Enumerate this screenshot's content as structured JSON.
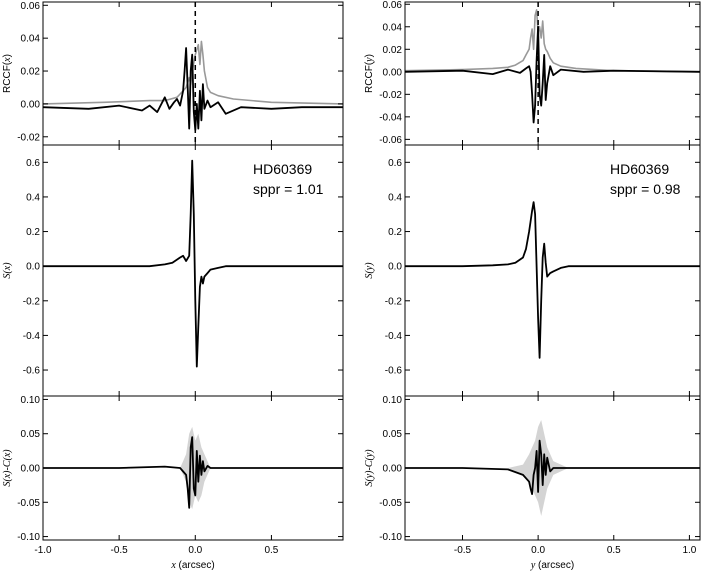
{
  "chart_data": [
    {
      "type": "line",
      "column": "x",
      "panel": "rccf",
      "ylabel_prefix": "RCCF(",
      "ylabel_var": "x",
      "ylabel_suffix": ")",
      "xlim": [
        -1.0,
        0.97
      ],
      "ylim": [
        -0.025,
        0.062
      ],
      "yticks": [
        -0.02,
        0.0,
        0.02,
        0.04,
        0.06
      ],
      "ytick_labels": [
        "-0.02",
        "0.00",
        "0.02",
        "0.04",
        "0.06"
      ],
      "vline_x": 0.0,
      "series": [
        {
          "color": "#999999",
          "x": [
            -1.0,
            -0.6,
            -0.3,
            -0.2,
            -0.12,
            -0.1,
            -0.08,
            -0.06,
            -0.05,
            -0.04,
            -0.03,
            -0.02,
            -0.01,
            0.0,
            0.01,
            0.02,
            0.03,
            0.04,
            0.05,
            0.06,
            0.08,
            0.1,
            0.15,
            0.25,
            0.5,
            0.97
          ],
          "y": [
            0.0,
            0.001,
            0.002,
            0.002,
            0.004,
            0.006,
            0.008,
            0.01,
            0.013,
            0.016,
            0.012,
            0.02,
            0.025,
            0.03,
            0.033,
            0.036,
            0.024,
            0.038,
            0.03,
            0.02,
            0.01,
            0.007,
            0.005,
            0.003,
            0.001,
            0.0
          ]
        },
        {
          "color": "#000000",
          "x": [
            -1.0,
            -0.7,
            -0.5,
            -0.35,
            -0.3,
            -0.25,
            -0.2,
            -0.17,
            -0.14,
            -0.12,
            -0.1,
            -0.08,
            -0.07,
            -0.06,
            -0.05,
            -0.04,
            -0.03,
            -0.02,
            -0.01,
            0.0,
            0.01,
            0.02,
            0.03,
            0.04,
            0.05,
            0.06,
            0.08,
            0.1,
            0.15,
            0.2,
            0.3,
            0.5,
            0.7,
            0.97
          ],
          "y": [
            -0.002,
            -0.003,
            -0.001,
            -0.004,
            -0.001,
            -0.005,
            0.004,
            -0.003,
            0.001,
            0.003,
            -0.001,
            0.008,
            0.02,
            0.034,
            0.01,
            -0.015,
            0.02,
            0.03,
            -0.005,
            -0.016,
            0.0,
            -0.015,
            0.008,
            -0.01,
            0.012,
            -0.003,
            0.002,
            -0.002,
            0.001,
            -0.006,
            -0.002,
            -0.003,
            -0.002,
            -0.002
          ]
        }
      ]
    },
    {
      "type": "line",
      "column": "x",
      "panel": "signal",
      "ylabel_prefix": "S(",
      "ylabel_var": "x",
      "ylabel_suffix": ")",
      "xlim": [
        -1.0,
        0.97
      ],
      "ylim": [
        -0.75,
        0.7
      ],
      "yticks": [
        -0.6,
        -0.4,
        -0.2,
        0.0,
        0.2,
        0.4,
        0.6
      ],
      "ytick_labels": [
        "-0.6",
        "-0.4",
        "-0.2",
        "0.0",
        "0.2",
        "0.4",
        "0.6"
      ],
      "annotation_name": "HD60369",
      "annotation_sppr": "sppr = 1.01",
      "series": [
        {
          "color": "#000000",
          "x": [
            -1.0,
            -0.5,
            -0.3,
            -0.2,
            -0.15,
            -0.1,
            -0.08,
            -0.06,
            -0.04,
            -0.03,
            -0.02,
            -0.01,
            0.0,
            0.01,
            0.02,
            0.03,
            0.04,
            0.05,
            0.06,
            0.08,
            0.1,
            0.15,
            0.2,
            0.3,
            0.5,
            0.97
          ],
          "y": [
            0.0,
            0.0,
            0.0,
            0.01,
            0.02,
            0.05,
            0.06,
            0.03,
            0.06,
            0.3,
            0.61,
            0.3,
            -0.2,
            -0.58,
            -0.35,
            -0.12,
            -0.06,
            -0.1,
            -0.06,
            -0.04,
            -0.02,
            -0.01,
            0.0,
            0.0,
            0.0,
            0.0
          ]
        }
      ]
    },
    {
      "type": "line",
      "column": "x",
      "panel": "residual",
      "ylabel_prefix": "S(",
      "ylabel_var": "x",
      "ylabel_mid": ")-C(",
      "ylabel_var2": "x",
      "ylabel_suffix": ")",
      "xlabel_var": "x",
      "xlabel_unit": " (arcsec)",
      "xlim": [
        -1.0,
        0.97
      ],
      "ylim": [
        -0.105,
        0.105
      ],
      "yticks": [
        -0.1,
        -0.05,
        0.0,
        0.05,
        0.1
      ],
      "ytick_labels": [
        "-0.10",
        "-0.05",
        "0.00",
        "0.05",
        "0.10"
      ],
      "xticks": [
        -1.0,
        -0.5,
        0.0,
        0.5
      ],
      "xtick_labels": [
        "-1.0",
        "-0.5",
        "0.0",
        "0.5"
      ],
      "band": {
        "x": [
          -0.1,
          -0.06,
          -0.04,
          -0.02,
          0.0,
          0.02,
          0.04,
          0.06,
          0.1
        ],
        "upper": [
          0.0,
          0.02,
          0.05,
          0.06,
          0.04,
          0.05,
          0.03,
          0.02,
          0.0
        ],
        "lower": [
          0.0,
          -0.02,
          -0.05,
          -0.06,
          -0.04,
          -0.05,
          -0.04,
          -0.02,
          0.0
        ]
      },
      "series": [
        {
          "color": "#000000",
          "x": [
            -1.0,
            -0.5,
            -0.2,
            -0.1,
            -0.06,
            -0.05,
            -0.04,
            -0.03,
            -0.02,
            -0.01,
            0.0,
            0.01,
            0.02,
            0.03,
            0.04,
            0.05,
            0.06,
            0.08,
            0.1,
            0.3,
            0.97
          ],
          "y": [
            0.0,
            0.0,
            0.002,
            0.0,
            -0.01,
            -0.03,
            -0.058,
            0.03,
            0.045,
            -0.03,
            -0.04,
            0.025,
            -0.02,
            0.018,
            -0.01,
            0.01,
            -0.005,
            0.003,
            0.0,
            0.0,
            0.0
          ]
        }
      ]
    },
    {
      "type": "line",
      "column": "y",
      "panel": "rccf",
      "ylabel_prefix": "RCCF(",
      "ylabel_var": "y",
      "ylabel_suffix": ")",
      "xlim": [
        -0.88,
        1.07
      ],
      "ylim": [
        -0.065,
        0.062
      ],
      "yticks": [
        -0.06,
        -0.04,
        -0.02,
        0.0,
        0.02,
        0.04,
        0.06
      ],
      "ytick_labels": [
        "-0.06",
        "-0.04",
        "-0.02",
        "0.00",
        "0.02",
        "0.04",
        "0.06"
      ],
      "vline_x": 0.0,
      "series": [
        {
          "color": "#999999",
          "x": [
            -0.88,
            -0.5,
            -0.3,
            -0.2,
            -0.15,
            -0.1,
            -0.08,
            -0.06,
            -0.05,
            -0.04,
            -0.03,
            -0.02,
            -0.01,
            0.0,
            0.01,
            0.02,
            0.03,
            0.04,
            0.05,
            0.06,
            0.08,
            0.1,
            0.15,
            0.25,
            0.5,
            1.07
          ],
          "y": [
            0.001,
            0.002,
            0.003,
            0.004,
            0.006,
            0.01,
            0.015,
            0.02,
            0.03,
            0.038,
            0.02,
            0.05,
            0.055,
            0.035,
            0.04,
            0.03,
            0.045,
            0.025,
            0.02,
            0.018,
            0.012,
            0.008,
            0.005,
            0.003,
            0.001,
            0.0
          ]
        },
        {
          "color": "#000000",
          "x": [
            -0.88,
            -0.5,
            -0.3,
            -0.2,
            -0.12,
            -0.08,
            -0.06,
            -0.05,
            -0.04,
            -0.03,
            -0.02,
            -0.01,
            0.0,
            0.01,
            0.02,
            0.03,
            0.04,
            0.05,
            0.06,
            0.08,
            0.1,
            0.15,
            0.3,
            0.5,
            1.07
          ],
          "y": [
            0.0,
            0.001,
            -0.002,
            0.002,
            -0.001,
            0.003,
            0.005,
            0.0,
            -0.02,
            -0.045,
            -0.03,
            0.01,
            0.04,
            -0.02,
            -0.03,
            -0.01,
            0.015,
            -0.025,
            -0.01,
            0.005,
            -0.003,
            0.002,
            0.0,
            0.001,
            0.0
          ]
        }
      ]
    },
    {
      "type": "line",
      "column": "y",
      "panel": "signal",
      "ylabel_prefix": "S(",
      "ylabel_var": "y",
      "ylabel_suffix": ")",
      "xlim": [
        -0.88,
        1.07
      ],
      "ylim": [
        -0.75,
        0.7
      ],
      "yticks": [
        -0.6,
        -0.4,
        -0.2,
        0.0,
        0.2,
        0.4,
        0.6
      ],
      "ytick_labels": [
        "-0.6",
        "-0.4",
        "-0.2",
        "0.0",
        "0.2",
        "0.4",
        "0.6"
      ],
      "annotation_name": "HD60369",
      "annotation_sppr": "sppr = 0.98",
      "series": [
        {
          "color": "#000000",
          "x": [
            -0.88,
            -0.5,
            -0.3,
            -0.2,
            -0.15,
            -0.1,
            -0.08,
            -0.06,
            -0.05,
            -0.04,
            -0.03,
            -0.02,
            -0.01,
            0.0,
            0.01,
            0.02,
            0.03,
            0.04,
            0.05,
            0.06,
            0.08,
            0.1,
            0.15,
            0.2,
            0.3,
            0.5,
            1.07
          ],
          "y": [
            0.0,
            0.0,
            0.005,
            0.01,
            0.02,
            0.05,
            0.1,
            0.2,
            0.26,
            0.32,
            0.37,
            0.3,
            0.0,
            -0.3,
            -0.53,
            -0.2,
            0.05,
            0.13,
            0.02,
            -0.06,
            -0.04,
            -0.03,
            -0.01,
            0.0,
            0.0,
            0.0,
            0.0
          ]
        }
      ]
    },
    {
      "type": "line",
      "column": "y",
      "panel": "residual",
      "ylabel_prefix": "S(",
      "ylabel_var": "y",
      "ylabel_mid": ")-C(",
      "ylabel_var2": "y",
      "ylabel_suffix": ")",
      "xlabel_var": "y",
      "xlabel_unit": " (arcsec)",
      "xlim": [
        -0.88,
        1.07
      ],
      "ylim": [
        -0.105,
        0.105
      ],
      "yticks": [
        -0.1,
        -0.05,
        0.0,
        0.05,
        0.1
      ],
      "ytick_labels": [
        "-0.10",
        "-0.05",
        "0.00",
        "0.05",
        "0.10"
      ],
      "xticks": [
        -0.5,
        0.0,
        0.5,
        1.0
      ],
      "xtick_labels": [
        "-0.5",
        "0.0",
        "0.5",
        "1.0"
      ],
      "band": {
        "x": [
          -0.2,
          -0.1,
          -0.06,
          -0.04,
          -0.02,
          0.0,
          0.02,
          0.04,
          0.06,
          0.1,
          0.2
        ],
        "upper": [
          0.0,
          0.005,
          0.02,
          0.03,
          0.04,
          0.06,
          0.07,
          0.05,
          0.03,
          0.01,
          0.0
        ],
        "lower": [
          0.0,
          -0.01,
          -0.02,
          -0.03,
          -0.04,
          -0.05,
          -0.07,
          -0.05,
          -0.03,
          -0.01,
          0.0
        ]
      },
      "series": [
        {
          "color": "#000000",
          "x": [
            -0.88,
            -0.5,
            -0.2,
            -0.1,
            -0.06,
            -0.05,
            -0.04,
            -0.03,
            -0.02,
            -0.01,
            0.0,
            0.01,
            0.02,
            0.03,
            0.04,
            0.05,
            0.06,
            0.08,
            0.1,
            0.3,
            1.07
          ],
          "y": [
            0.0,
            0.0,
            -0.002,
            -0.01,
            -0.02,
            -0.03,
            -0.038,
            -0.01,
            0.0,
            0.025,
            -0.035,
            0.04,
            0.02,
            -0.025,
            0.02,
            -0.01,
            0.015,
            -0.005,
            0.0,
            0.0,
            0.0
          ]
        }
      ]
    }
  ]
}
